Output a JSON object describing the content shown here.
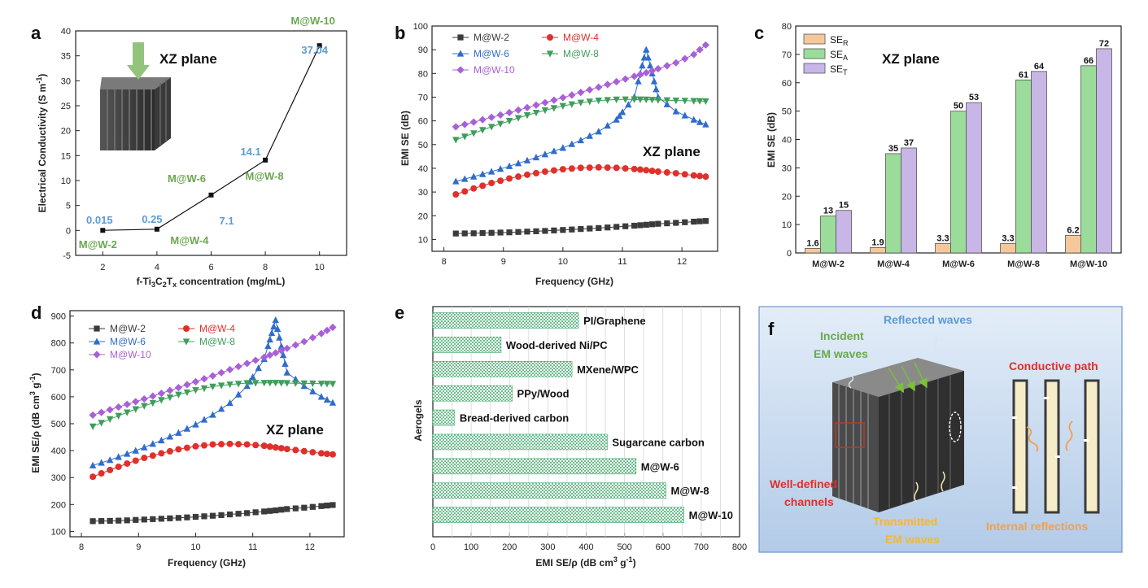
{
  "colors": {
    "m2": "#3b3b3b",
    "m4": "#e0302b",
    "m6": "#2f6ccc",
    "m8": "#3c9e5a",
    "m10": "#a860d8",
    "seR": "#f5c89c",
    "seA": "#9bdc9b",
    "seT": "#c7b6e6",
    "green_label": "#6aa84f",
    "blue_label": "#5b9bd5",
    "bar_e": "#7cc79a",
    "panel_f_bg": "#c5d8ef"
  },
  "chart_data": [
    {
      "id": "a",
      "panel_label": "a",
      "type": "line",
      "xlabel_main": "f-Ti",
      "xlabel_sub1": "3",
      "xlabel_mid": "C",
      "xlabel_sub2": "2",
      "xlabel_end": "T",
      "xlabel_sub3": "x",
      "xlabel_tail": " concentration (mg/mL)",
      "ylabel": "Electrical Conductivity (S m",
      "ylabel_sup": "-1",
      "ylabel_tail": ")",
      "xlim": [
        1,
        11
      ],
      "ylim": [
        -5,
        40
      ],
      "xticks": [
        "2",
        "4",
        "6",
        "8",
        "10"
      ],
      "yticks": [
        "-5",
        "0",
        "5",
        "10",
        "15",
        "20",
        "25",
        "30",
        "35",
        "40"
      ],
      "x": [
        2,
        4,
        6,
        8,
        10
      ],
      "y": [
        0.015,
        0.25,
        7.1,
        14.1,
        37.04
      ],
      "value_labels": [
        "0.015",
        "0.25",
        "7.1",
        "14.1",
        "37.04"
      ],
      "sample_labels": [
        "M@W-2",
        "M@W-4",
        "M@W-6",
        "M@W-8",
        "M@W-10"
      ],
      "annotation": "XZ plane"
    },
    {
      "id": "b",
      "panel_label": "b",
      "type": "line",
      "xlabel": "Frequency (GHz)",
      "ylabel": "EMI SE (dB)",
      "xlim": [
        7.8,
        12.6
      ],
      "ylim": [
        5,
        100
      ],
      "xticks": [
        "8",
        "9",
        "10",
        "11",
        "12"
      ],
      "yticks": [
        "10",
        "20",
        "30",
        "40",
        "50",
        "60",
        "70",
        "80",
        "90",
        "100"
      ],
      "x": [
        8.2,
        8.5,
        8.8,
        9.1,
        9.4,
        9.7,
        10.0,
        10.3,
        10.6,
        10.9,
        11.2,
        11.4,
        11.6,
        11.9,
        12.2,
        12.4
      ],
      "series": [
        {
          "name": "M@W-2",
          "values": [
            12.5,
            12.6,
            12.8,
            13.0,
            13.3,
            13.6,
            14.0,
            14.4,
            14.8,
            15.3,
            15.8,
            16.2,
            16.6,
            17.0,
            17.5,
            17.8
          ]
        },
        {
          "name": "M@W-4",
          "values": [
            29,
            31.5,
            33.8,
            35.7,
            37.3,
            38.6,
            39.6,
            40.2,
            40.4,
            40.2,
            39.7,
            39.2,
            38.6,
            37.9,
            37.0,
            36.5
          ]
        },
        {
          "name": "M@W-6",
          "values": [
            34.5,
            36.5,
            38.6,
            40.9,
            43.3,
            45.9,
            48.6,
            51.8,
            55.5,
            60.5,
            70.0,
            90.0,
            70.0,
            64.0,
            60.5,
            58.5
          ]
        },
        {
          "name": "M@W-8",
          "values": [
            52,
            54.8,
            57.5,
            60.0,
            62.4,
            64.5,
            66.3,
            67.7,
            68.6,
            69.0,
            69.1,
            69.0,
            68.8,
            68.6,
            68.4,
            68.3
          ]
        },
        {
          "name": "M@W-10",
          "values": [
            57.5,
            59.5,
            61.5,
            63.5,
            65.6,
            67.7,
            69.8,
            72.0,
            74.2,
            76.5,
            78.8,
            80.3,
            82.0,
            84.5,
            88.0,
            92.0
          ]
        }
      ],
      "annotation": "XZ plane"
    },
    {
      "id": "c",
      "panel_label": "c",
      "type": "bar",
      "ylabel": "EMI SE (dB)",
      "ylim": [
        0,
        80
      ],
      "yticks": [
        "0",
        "10",
        "20",
        "30",
        "40",
        "50",
        "60",
        "70",
        "80"
      ],
      "categories": [
        "M@W-2",
        "M@W-4",
        "M@W-6",
        "M@W-8",
        "M@W-10"
      ],
      "series": [
        {
          "name": "SE",
          "sub": "R",
          "values": [
            1.6,
            1.9,
            3.3,
            3.3,
            6.2
          ],
          "labels": [
            "1.6",
            "1.9",
            "3.3",
            "3.3",
            "6.2"
          ]
        },
        {
          "name": "SE",
          "sub": "A",
          "values": [
            13,
            35,
            50,
            61,
            66
          ],
          "labels": [
            "13",
            "35",
            "50",
            "61",
            "66"
          ]
        },
        {
          "name": "SE",
          "sub": "T",
          "values": [
            15,
            37,
            53,
            64,
            72
          ],
          "labels": [
            "15",
            "37",
            "53",
            "64",
            "72"
          ]
        }
      ],
      "annotation": "XZ plane"
    },
    {
      "id": "d",
      "panel_label": "d",
      "type": "line",
      "xlabel": "Frequency (GHz)",
      "ylabel": "EMI SE/ρ (dB cm",
      "ylabel_sup1": "3",
      "ylabel_mid": " g",
      "ylabel_sup2": "-1",
      "ylabel_tail": ")",
      "xlim": [
        7.8,
        12.6
      ],
      "ylim": [
        80,
        920
      ],
      "xticks": [
        "8",
        "9",
        "10",
        "11",
        "12"
      ],
      "yticks": [
        "100",
        "200",
        "300",
        "400",
        "500",
        "600",
        "700",
        "800",
        "900"
      ],
      "x": [
        8.2,
        8.5,
        8.8,
        9.1,
        9.4,
        9.7,
        10.0,
        10.3,
        10.6,
        10.9,
        11.2,
        11.4,
        11.6,
        11.9,
        12.2,
        12.4
      ],
      "series": [
        {
          "name": "M@W-2",
          "values": [
            138,
            139,
            141,
            144,
            147,
            150,
            154,
            158,
            163,
            168,
            174,
            178,
            183,
            188,
            194,
            198
          ]
        },
        {
          "name": "M@W-4",
          "values": [
            303,
            328,
            352,
            373,
            390,
            405,
            416,
            423,
            425,
            423,
            418,
            412,
            406,
            398,
            390,
            386
          ]
        },
        {
          "name": "M@W-6",
          "values": [
            345,
            365,
            388,
            412,
            438,
            466,
            497,
            533,
            577,
            640,
            740,
            885,
            690,
            640,
            600,
            578
          ]
        },
        {
          "name": "M@W-8",
          "values": [
            490,
            517,
            542,
            566,
            588,
            608,
            625,
            638,
            646,
            651,
            652,
            652,
            651,
            650,
            649,
            648
          ]
        },
        {
          "name": "M@W-10",
          "values": [
            532,
            552,
            572,
            592,
            613,
            634,
            656,
            678,
            701,
            724,
            747,
            763,
            780,
            805,
            835,
            858
          ]
        }
      ],
      "annotation": "XZ plane"
    },
    {
      "id": "e",
      "panel_label": "e",
      "type": "bar",
      "orientation": "horizontal",
      "xlabel": "EMI SE/ρ (dB cm",
      "xlabel_sup1": "3",
      "xlabel_mid": " g",
      "xlabel_sup2": "-1",
      "xlabel_tail": ")",
      "ylabel": "Aerogels",
      "xlim": [
        0,
        800
      ],
      "xticks": [
        "0",
        "100",
        "200",
        "300",
        "400",
        "500",
        "600",
        "700",
        "800"
      ],
      "categories": [
        "PI/Graphene",
        "Wood-derived Ni/PC",
        "MXene/WPC",
        "PPy/Wood",
        "Bread-derived carbon",
        "Sugarcane carbon",
        "M@W-6",
        "M@W-8",
        "M@W-10"
      ],
      "values": [
        380,
        178,
        363,
        207,
        57,
        455,
        530,
        608,
        655
      ]
    }
  ],
  "panel_f": {
    "label": "f",
    "incident": "Incident",
    "incident2": "EM waves",
    "reflected": "Reflected waves",
    "conductive": "Conductive path",
    "channels1": "Well-defined",
    "channels2": "channels",
    "transmitted1": "Transmitted",
    "transmitted2": "EM waves",
    "internal": "Internal reflections"
  }
}
